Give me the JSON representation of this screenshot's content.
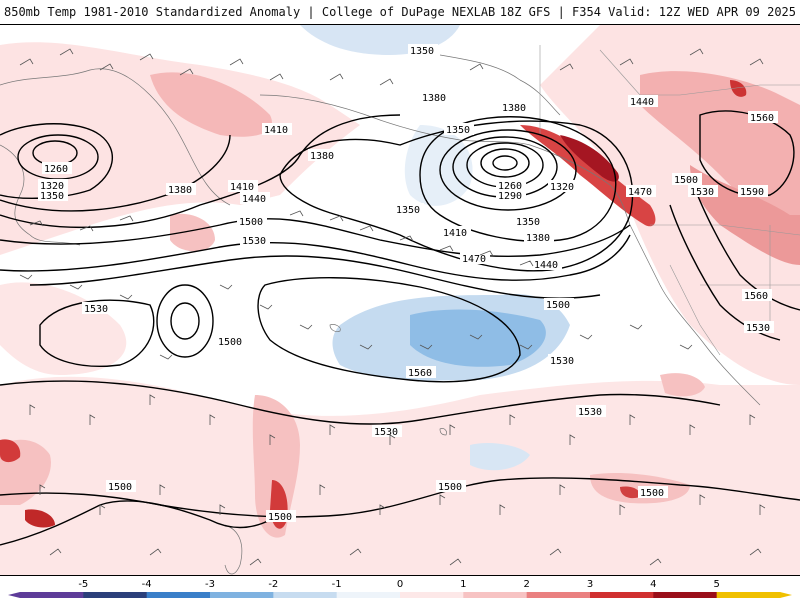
{
  "header": {
    "title_left": "850mb Temp 1981-2010 Standardized Anomaly | College of DuPage NEXLAB",
    "title_right": "18Z GFS | F354 Valid: 12Z WED APR 09 2025"
  },
  "map": {
    "contour_labels": [
      "1350",
      "1380",
      "1410",
      "1440",
      "1470",
      "1500",
      "1530",
      "1560",
      "1590",
      "1260",
      "1290",
      "1320"
    ],
    "field": "850mb geopotential height (m) with standardized temperature anomaly shading"
  },
  "colorbar": {
    "ticks": [
      "-5",
      "-4",
      "-3",
      "-2",
      "-1",
      "0",
      "1",
      "2",
      "3",
      "4",
      "5"
    ],
    "colors": [
      "#5e3c99",
      "#2b3f7a",
      "#3a7fc9",
      "#7fb2e0",
      "#c7dcf0",
      "#eef4fa",
      "#fde8e8",
      "#f7c3c3",
      "#ea8080",
      "#d03030",
      "#9a0f1a",
      "#f0c000"
    ]
  }
}
